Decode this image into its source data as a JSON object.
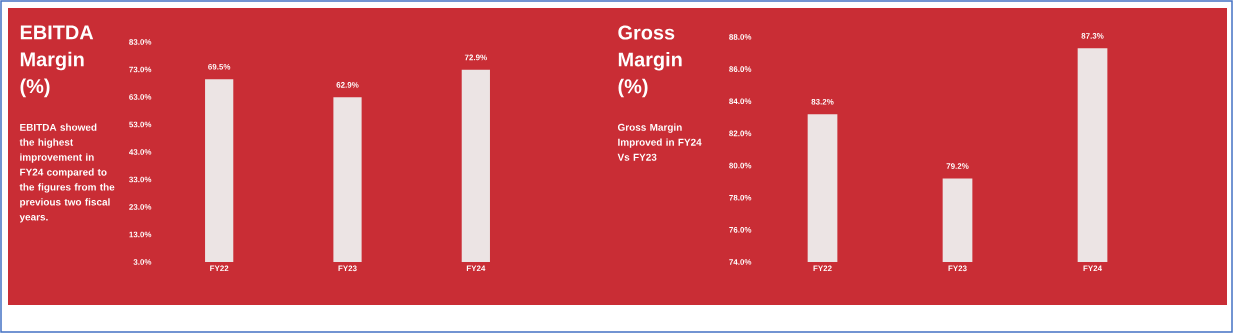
{
  "chart_data": [
    {
      "type": "bar",
      "title": "EBITDA Margin (%)",
      "subtitle": "EBITDA showed the highest improvement in FY24 compared to the figures from the previous two fiscal years.",
      "categories": [
        "FY22",
        "FY23",
        "FY24"
      ],
      "values": [
        69.5,
        62.9,
        72.9
      ],
      "value_labels": [
        "69.5%",
        "62.9%",
        "72.9%"
      ],
      "color": "#ece4e4",
      "ylim": [
        3,
        83
      ],
      "yticks": [
        {
          "value": 3,
          "label": "3.0%"
        },
        {
          "value": 13,
          "label": "13.0%"
        },
        {
          "value": 23,
          "label": "23.0%"
        },
        {
          "value": 33,
          "label": "33.0%"
        },
        {
          "value": 43,
          "label": "43.0%"
        },
        {
          "value": 53,
          "label": "53.0%"
        },
        {
          "value": 63,
          "label": "63.0%"
        },
        {
          "value": 73,
          "label": "73.0%"
        },
        {
          "value": 83,
          "label": "83.0%"
        }
      ]
    },
    {
      "type": "bar",
      "title": "Gross Margin (%)",
      "subtitle": "Gross Margin Improved in FY24 Vs FY23",
      "categories": [
        "FY22",
        "FY23",
        "FY24"
      ],
      "values": [
        83.2,
        79.2,
        87.3
      ],
      "value_labels": [
        "83.2%",
        "79.2%",
        "87.3%"
      ],
      "color": "#ece4e4",
      "ylim": [
        74,
        88
      ],
      "yticks": [
        {
          "value": 74,
          "label": "74.0%"
        },
        {
          "value": 76,
          "label": "76.0%"
        },
        {
          "value": 78,
          "label": "78.0%"
        },
        {
          "value": 80,
          "label": "80.0%"
        },
        {
          "value": 82,
          "label": "82.0%"
        },
        {
          "value": 84,
          "label": "84.0%"
        },
        {
          "value": 86,
          "label": "86.0%"
        },
        {
          "value": 88,
          "label": "88.0%"
        }
      ]
    }
  ]
}
